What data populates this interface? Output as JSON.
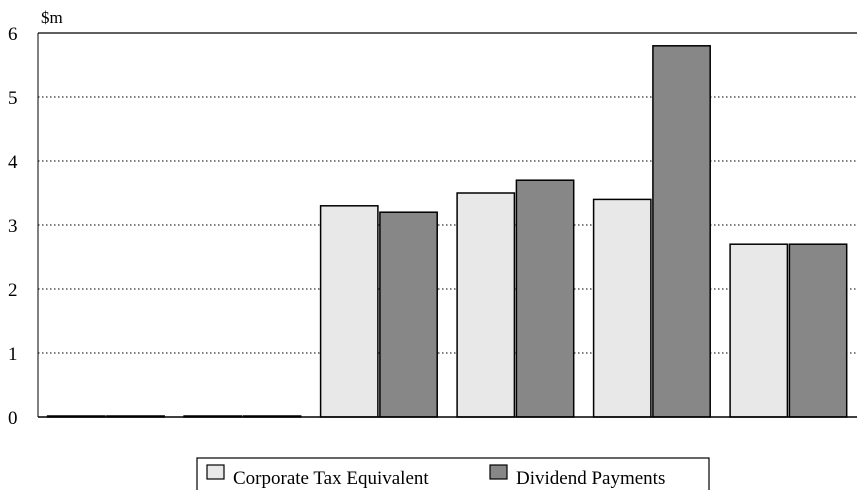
{
  "chart_data": {
    "type": "bar",
    "title": "",
    "xlabel": "",
    "ylabel": "$m",
    "ylim": [
      0,
      6
    ],
    "yticks": [
      0,
      1,
      2,
      3,
      4,
      5,
      6
    ],
    "grid": "horizontal dotted",
    "legend_position": "bottom",
    "categories": [
      "",
      "",
      "",
      "",
      "",
      ""
    ],
    "series": [
      {
        "name": "Corporate Tax Equivalent",
        "color": "#e8e8e8",
        "values": [
          0,
          0,
          3.3,
          3.5,
          3.4,
          2.7
        ]
      },
      {
        "name": "Dividend Payments",
        "color": "#878787",
        "values": [
          0,
          0,
          3.2,
          3.7,
          5.8,
          2.7
        ]
      }
    ]
  }
}
